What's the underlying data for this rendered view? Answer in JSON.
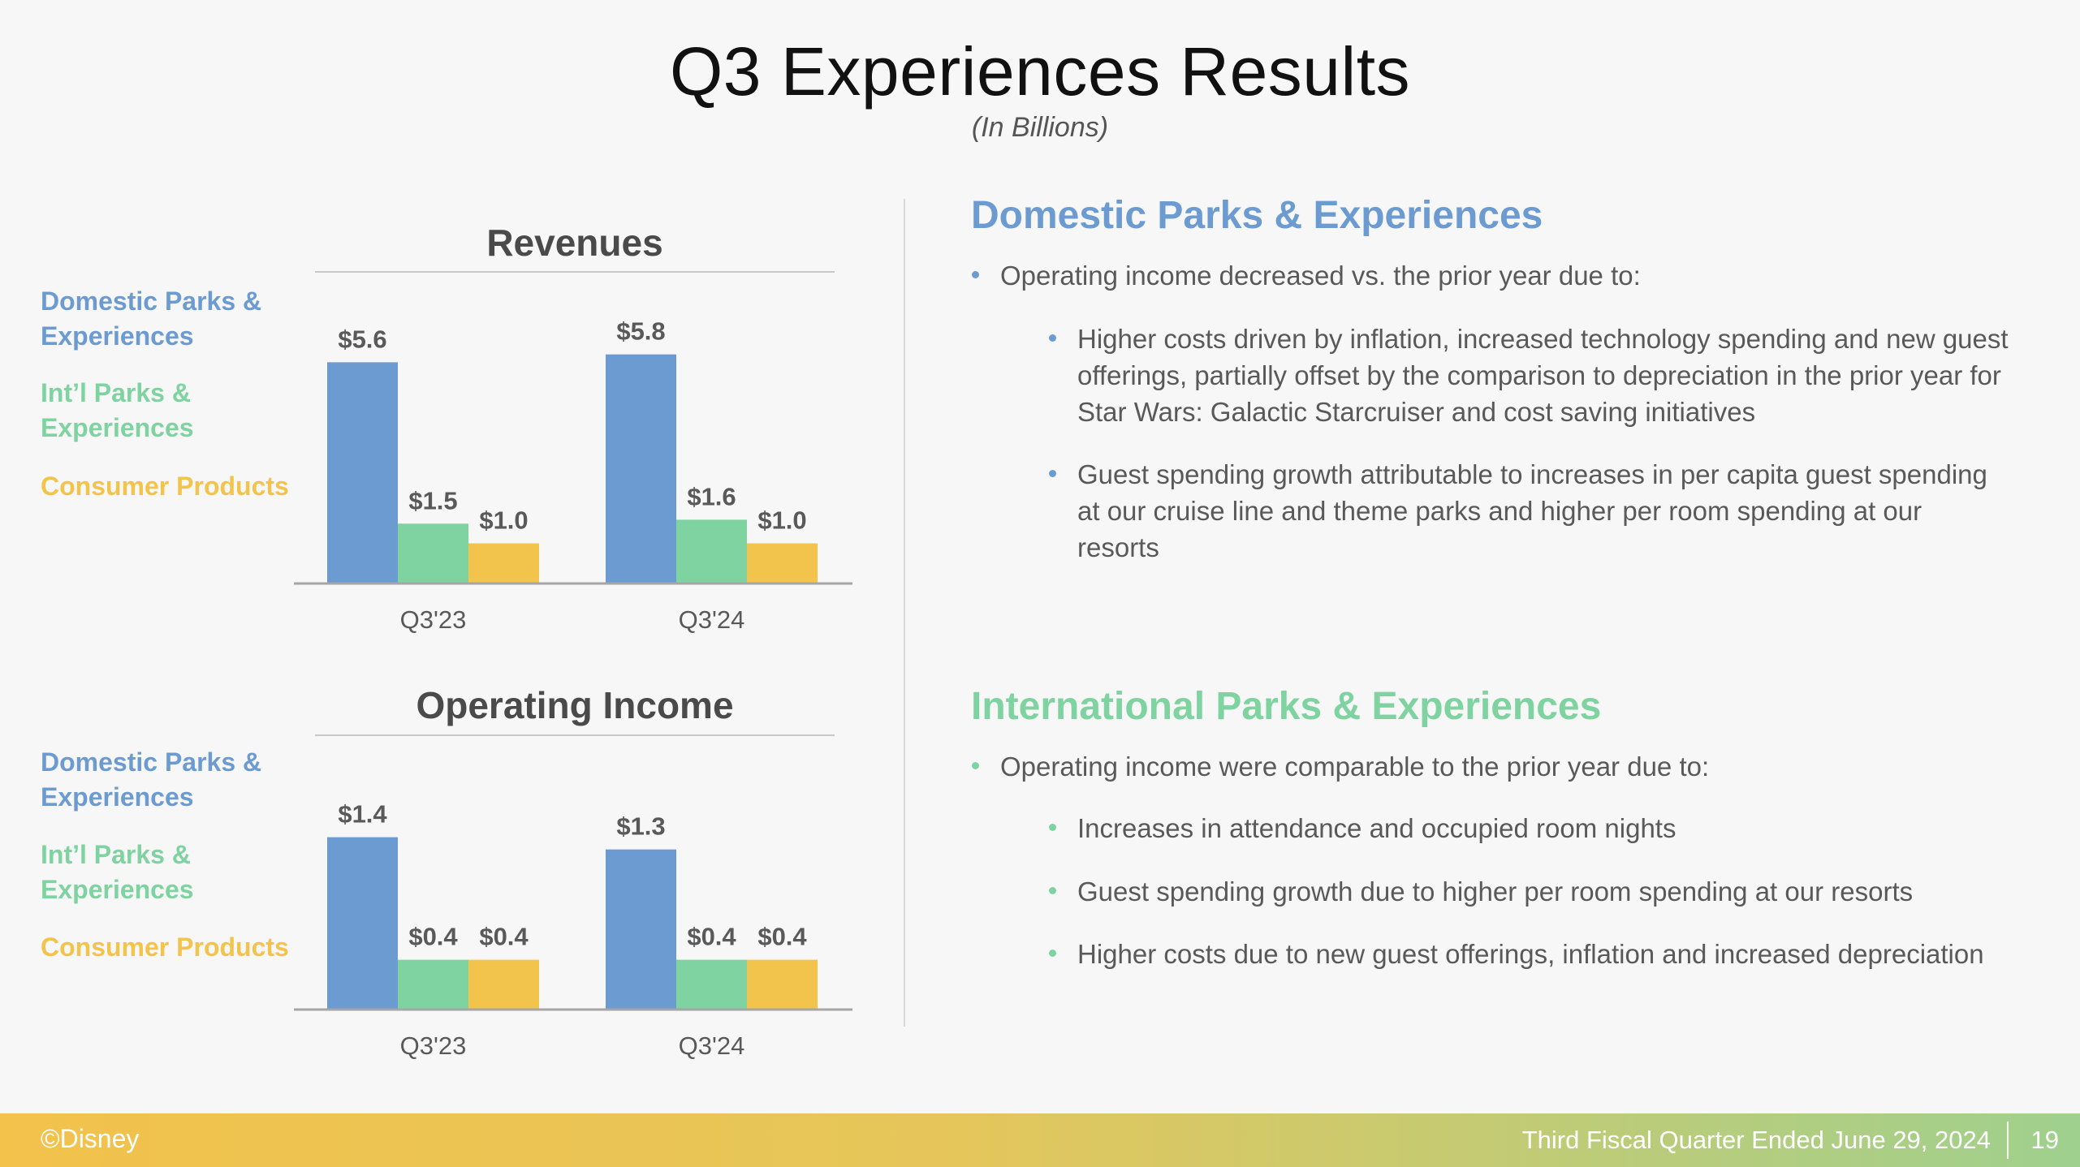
{
  "slide": {
    "title": "Q3 Experiences Results",
    "subtitle": "(In Billions)"
  },
  "colors": {
    "domestic": "#6c9bd2",
    "international": "#7fd3a0",
    "consumer": "#f3c44c"
  },
  "legend": {
    "domestic": "Domestic Parks & Experiences",
    "domestic_line1": "Domestic Parks &",
    "domestic_line2": "Experiences",
    "intl_line1": "Int’l Parks &",
    "intl_line2": "Experiences",
    "consumer": "Consumer Products"
  },
  "chart_data": [
    {
      "type": "bar",
      "title": "Revenues",
      "categories": [
        "Q3'23",
        "Q3'24"
      ],
      "series": [
        {
          "name": "Domestic Parks & Experiences",
          "values": [
            5.6,
            5.8
          ],
          "labels": [
            "$5.6",
            "$5.8"
          ]
        },
        {
          "name": "Int’l Parks & Experiences",
          "values": [
            1.5,
            1.6
          ],
          "labels": [
            "$1.5",
            "$1.6"
          ]
        },
        {
          "name": "Consumer Products",
          "values": [
            1.0,
            1.0
          ],
          "labels": [
            "$1.0",
            "$1.0"
          ]
        }
      ],
      "grid": false,
      "legend_position": "left"
    },
    {
      "type": "bar",
      "title": "Operating Income",
      "categories": [
        "Q3'23",
        "Q3'24"
      ],
      "series": [
        {
          "name": "Domestic Parks & Experiences",
          "values": [
            1.4,
            1.3
          ],
          "labels": [
            "$1.4",
            "$1.3"
          ]
        },
        {
          "name": "Int’l Parks & Experiences",
          "values": [
            0.4,
            0.4
          ],
          "labels": [
            "$0.4",
            "$0.4"
          ]
        },
        {
          "name": "Consumer Products",
          "values": [
            0.4,
            0.4
          ],
          "labels": [
            "$0.4",
            "$0.4"
          ]
        }
      ],
      "grid": false,
      "legend_position": "left"
    }
  ],
  "domestic_section": {
    "heading": "Domestic Parks & Experiences",
    "lead": "Operating income decreased vs. the prior year due to:",
    "points": [
      "Higher costs driven by inflation, increased technology spending and new guest offerings, partially offset by the comparison to depreciation in the prior year for Star Wars: Galactic Starcruiser and cost saving initiatives",
      "Guest spending growth attributable to increases in per capita guest spending at our cruise line and theme parks and higher per room spending at our resorts"
    ]
  },
  "international_section": {
    "heading": "International Parks & Experiences",
    "lead": "Operating income were comparable to the prior year due to:",
    "points": [
      "Increases in attendance and occupied room nights",
      "Guest spending growth due to higher per room spending at our resorts",
      "Higher costs due to new guest offerings, inflation and increased depreciation"
    ]
  },
  "footer": {
    "copyright": "©Disney",
    "period": "Third Fiscal Quarter Ended June 29, 2024",
    "page": "19"
  }
}
